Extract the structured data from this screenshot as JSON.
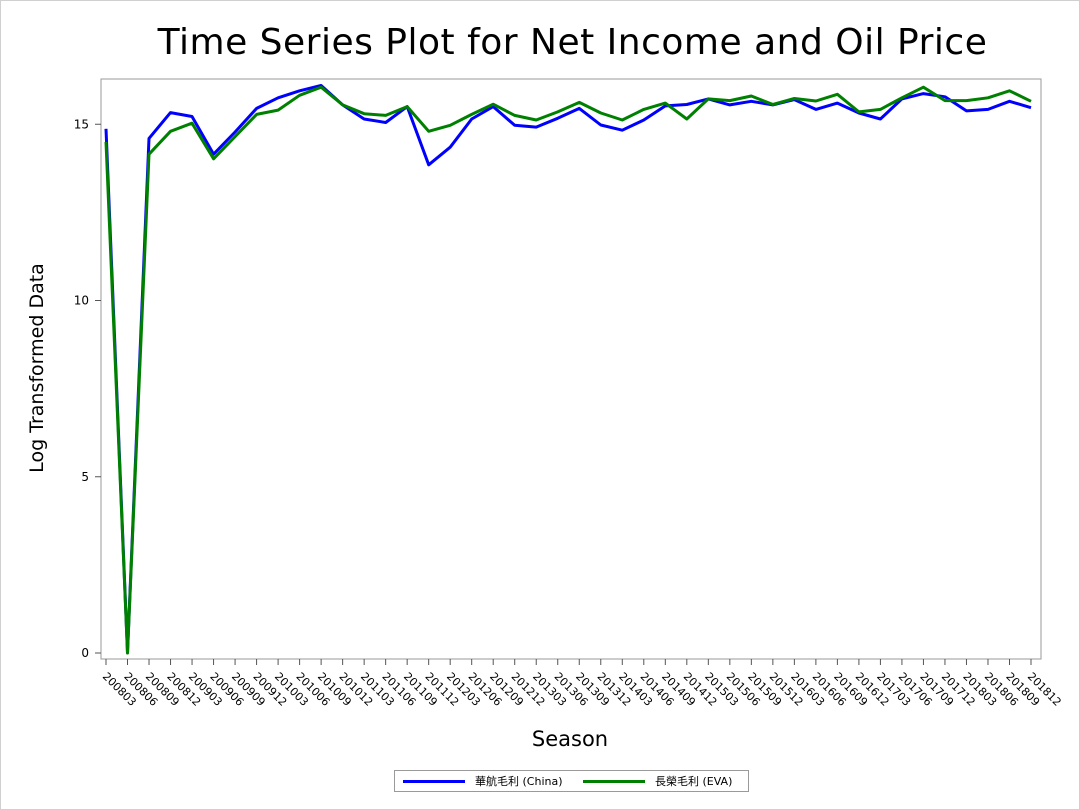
{
  "chart_data": {
    "type": "line",
    "title": "Time Series Plot for Net Income and Oil Price",
    "xlabel": "Season",
    "ylabel": "Log Transformed Data",
    "ylim": [
      0,
      16.2
    ],
    "yticks": [
      0,
      5,
      10,
      15
    ],
    "grid": false,
    "legend_position": "bottom",
    "categories": [
      "200803",
      "200806",
      "200809",
      "200812",
      "200903",
      "200906",
      "200909",
      "200912",
      "201003",
      "201006",
      "201009",
      "201012",
      "201103",
      "201106",
      "201109",
      "201112",
      "201203",
      "201206",
      "201209",
      "201212",
      "201303",
      "201306",
      "201309",
      "201312",
      "201403",
      "201406",
      "201409",
      "201412",
      "201503",
      "201506",
      "201509",
      "201512",
      "201603",
      "201606",
      "201609",
      "201612",
      "201703",
      "201706",
      "201709",
      "201712",
      "201803",
      "201806",
      "201809",
      "201812"
    ],
    "series": [
      {
        "name": "華航毛利 (China)",
        "color": "#0000ff",
        "values": [
          14.87,
          0.02,
          14.6,
          15.33,
          15.22,
          14.15,
          14.78,
          15.45,
          15.75,
          15.95,
          16.1,
          15.55,
          15.15,
          15.05,
          15.5,
          13.85,
          14.35,
          15.15,
          15.5,
          14.97,
          14.92,
          15.17,
          15.45,
          14.98,
          14.83,
          15.12,
          15.52,
          15.56,
          15.72,
          15.55,
          15.65,
          15.55,
          15.7,
          15.42,
          15.6,
          15.32,
          15.15,
          15.72,
          15.87,
          15.78,
          15.38,
          15.42,
          15.65,
          15.47
        ]
      },
      {
        "name": "長榮毛利 (EVA)",
        "color": "#008000",
        "values": [
          14.5,
          0.0,
          14.15,
          14.8,
          15.03,
          14.02,
          14.65,
          15.28,
          15.4,
          15.82,
          16.05,
          15.55,
          15.3,
          15.25,
          15.5,
          14.8,
          14.97,
          15.28,
          15.57,
          15.25,
          15.12,
          15.35,
          15.62,
          15.32,
          15.12,
          15.42,
          15.6,
          15.15,
          15.72,
          15.67,
          15.8,
          15.56,
          15.73,
          15.66,
          15.85,
          15.35,
          15.42,
          15.75,
          16.05,
          15.67,
          15.67,
          15.75,
          15.95,
          15.65
        ]
      }
    ]
  }
}
